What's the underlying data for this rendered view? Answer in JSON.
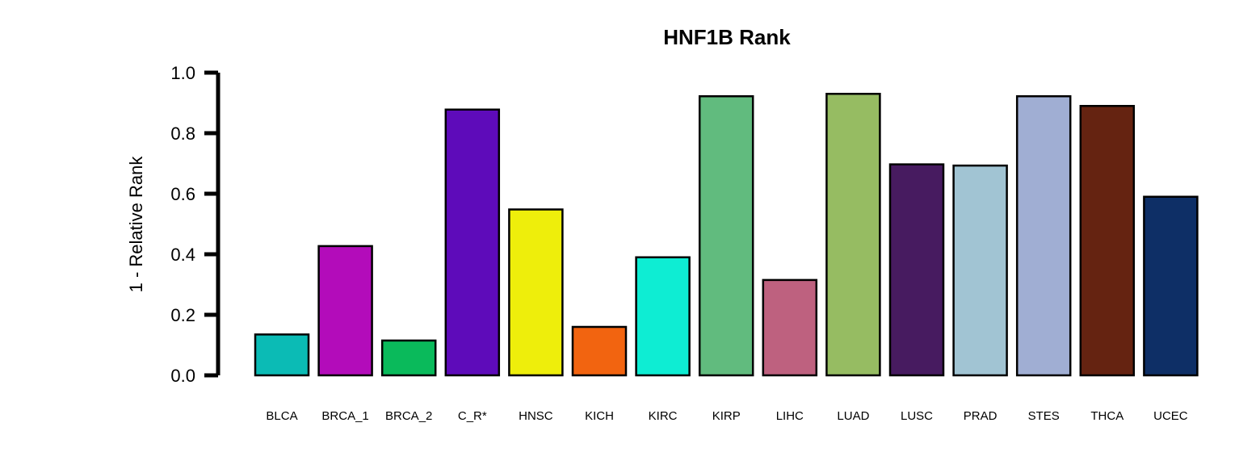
{
  "chart_data": {
    "type": "bar",
    "title": "HNF1B Rank",
    "xlabel": "",
    "ylabel": "1 - Relative Rank",
    "ylim": [
      0,
      1
    ],
    "yticks": [
      "0.0",
      "0.2",
      "0.4",
      "0.6",
      "0.8",
      "1.0"
    ],
    "grid": false,
    "legend": "none",
    "categories": [
      "BLCA",
      "BRCA_1",
      "BRCA_2",
      "C_R*",
      "HNSC",
      "KICH",
      "KIRC",
      "KIRP",
      "LIHC",
      "LUAD",
      "LUSC",
      "PRAD",
      "STES",
      "THCA",
      "UCEC"
    ],
    "values": [
      0.135,
      0.427,
      0.115,
      0.878,
      0.548,
      0.16,
      0.39,
      0.922,
      0.315,
      0.93,
      0.697,
      0.693,
      0.922,
      0.89,
      0.59
    ],
    "colors": [
      "#0BBBB5",
      "#B30CBA",
      "#0ABA5B",
      "#5E0BBA",
      "#EEEE0B",
      "#F26410",
      "#0EEDD3",
      "#61BB7E",
      "#BE617F",
      "#96BC62",
      "#471B60",
      "#A1C4D3",
      "#A0AED3",
      "#652311",
      "#0E2F66"
    ]
  }
}
